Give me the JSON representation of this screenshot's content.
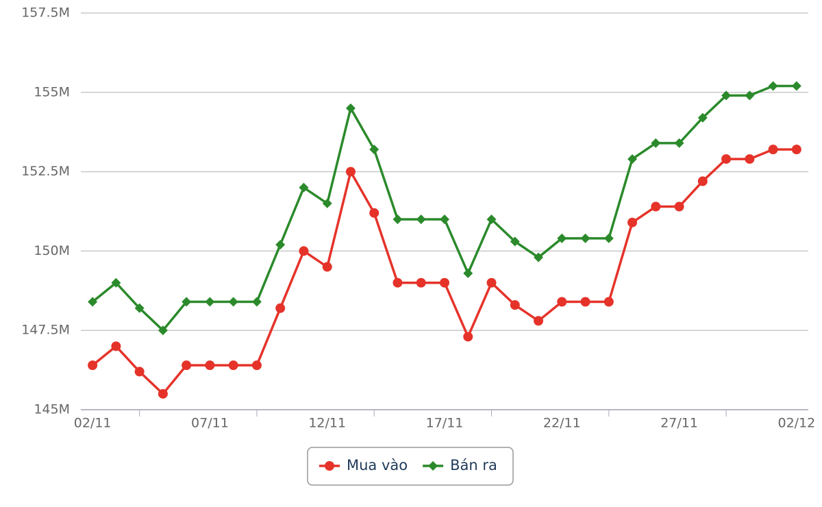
{
  "chart_data": {
    "type": "line",
    "categories": [
      "02/11",
      null,
      null,
      null,
      null,
      "07/11",
      null,
      null,
      null,
      null,
      "12/11",
      null,
      null,
      null,
      null,
      "17/11",
      null,
      null,
      null,
      null,
      "22/11",
      null,
      null,
      null,
      null,
      "27/11",
      null,
      null,
      null,
      null,
      "02/12"
    ],
    "series": [
      {
        "name": "Mua vào",
        "color": "#e5332a",
        "marker": "circle",
        "values": [
          146.4,
          147.0,
          146.2,
          145.5,
          146.4,
          146.4,
          146.4,
          146.4,
          148.2,
          150.0,
          149.5,
          152.5,
          151.2,
          149.0,
          149.0,
          149.0,
          147.3,
          149.0,
          148.3,
          147.8,
          148.4,
          148.4,
          148.4,
          150.9,
          151.4,
          151.4,
          152.2,
          152.9,
          152.9,
          153.2,
          153.2
        ]
      },
      {
        "name": "Bán ra",
        "color": "#2b8a2b",
        "marker": "diamond",
        "values": [
          148.4,
          149.0,
          148.2,
          147.5,
          148.4,
          148.4,
          148.4,
          148.4,
          150.2,
          152.0,
          151.5,
          154.5,
          153.2,
          151.0,
          151.0,
          151.0,
          149.3,
          151.0,
          150.3,
          149.8,
          150.4,
          150.4,
          150.4,
          152.9,
          153.4,
          153.4,
          154.2,
          154.9,
          154.9,
          155.2,
          155.2
        ]
      }
    ],
    "ylim": [
      145,
      157.5
    ],
    "yticks": [
      {
        "value": 145,
        "label": "145M"
      },
      {
        "value": 147.5,
        "label": "147.5M"
      },
      {
        "value": 150,
        "label": "150M"
      },
      {
        "value": 152.5,
        "label": "152.5M"
      },
      {
        "value": 155,
        "label": "155M"
      },
      {
        "value": 157.5,
        "label": "157.5M"
      }
    ],
    "grid": true,
    "legend": "bottom"
  }
}
